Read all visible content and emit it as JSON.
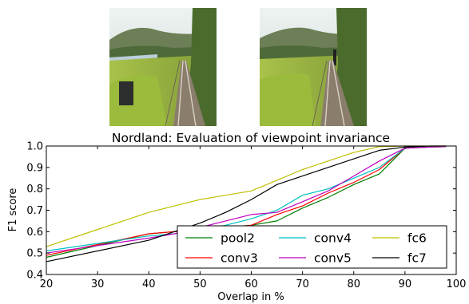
{
  "photos": [
    {
      "name": "nordland-photo-left"
    },
    {
      "name": "nordland-photo-right"
    }
  ],
  "chart_data": {
    "type": "line",
    "title": "Nordland: Evaluation of viewpoint invariance",
    "xlabel": "Overlap in %",
    "ylabel": "F1 score",
    "xlim": [
      20,
      100
    ],
    "ylim": [
      0.4,
      1.0
    ],
    "xticks": [
      "20",
      "30",
      "40",
      "50",
      "60",
      "70",
      "80",
      "90",
      "100"
    ],
    "yticks": [
      "0.4",
      "0.5",
      "0.6",
      "0.7",
      "0.8",
      "0.9",
      "1.0"
    ],
    "grid": false,
    "legend_position": "lower-right",
    "legend_columns": 3,
    "x": [
      20,
      40,
      45,
      50,
      55,
      60,
      65,
      70,
      75,
      80,
      85,
      90,
      95,
      98
    ],
    "series": [
      {
        "name": "pool2",
        "color": "#008000",
        "values": [
          0.48,
          0.59,
          0.6,
          0.61,
          0.62,
          0.63,
          0.65,
          0.71,
          0.76,
          0.82,
          0.87,
          0.99,
          0.995,
          0.997
        ]
      },
      {
        "name": "conv3",
        "color": "#ff0000",
        "values": [
          0.49,
          0.59,
          0.6,
          0.61,
          0.62,
          0.63,
          0.68,
          0.72,
          0.78,
          0.83,
          0.89,
          0.99,
          0.995,
          0.997
        ]
      },
      {
        "name": "conv4",
        "color": "#00bfbf",
        "values": [
          0.51,
          0.58,
          0.59,
          0.61,
          0.63,
          0.66,
          0.7,
          0.77,
          0.8,
          0.85,
          0.9,
          0.99,
          0.995,
          0.997
        ]
      },
      {
        "name": "conv5",
        "color": "#bf00bf",
        "values": [
          0.5,
          0.57,
          0.59,
          0.62,
          0.65,
          0.68,
          0.69,
          0.74,
          0.79,
          0.86,
          0.93,
          0.99,
          0.995,
          0.997
        ]
      },
      {
        "name": "fc6",
        "color": "#bfbf00",
        "values": [
          0.53,
          0.69,
          0.72,
          0.75,
          0.77,
          0.79,
          0.84,
          0.89,
          0.93,
          0.97,
          0.997,
          1.0,
          1.0,
          1.0
        ]
      },
      {
        "name": "fc7",
        "color": "#000000",
        "values": [
          0.46,
          0.56,
          0.6,
          0.64,
          0.69,
          0.75,
          0.82,
          0.86,
          0.9,
          0.94,
          0.98,
          0.995,
          1.0,
          1.0
        ]
      }
    ]
  }
}
